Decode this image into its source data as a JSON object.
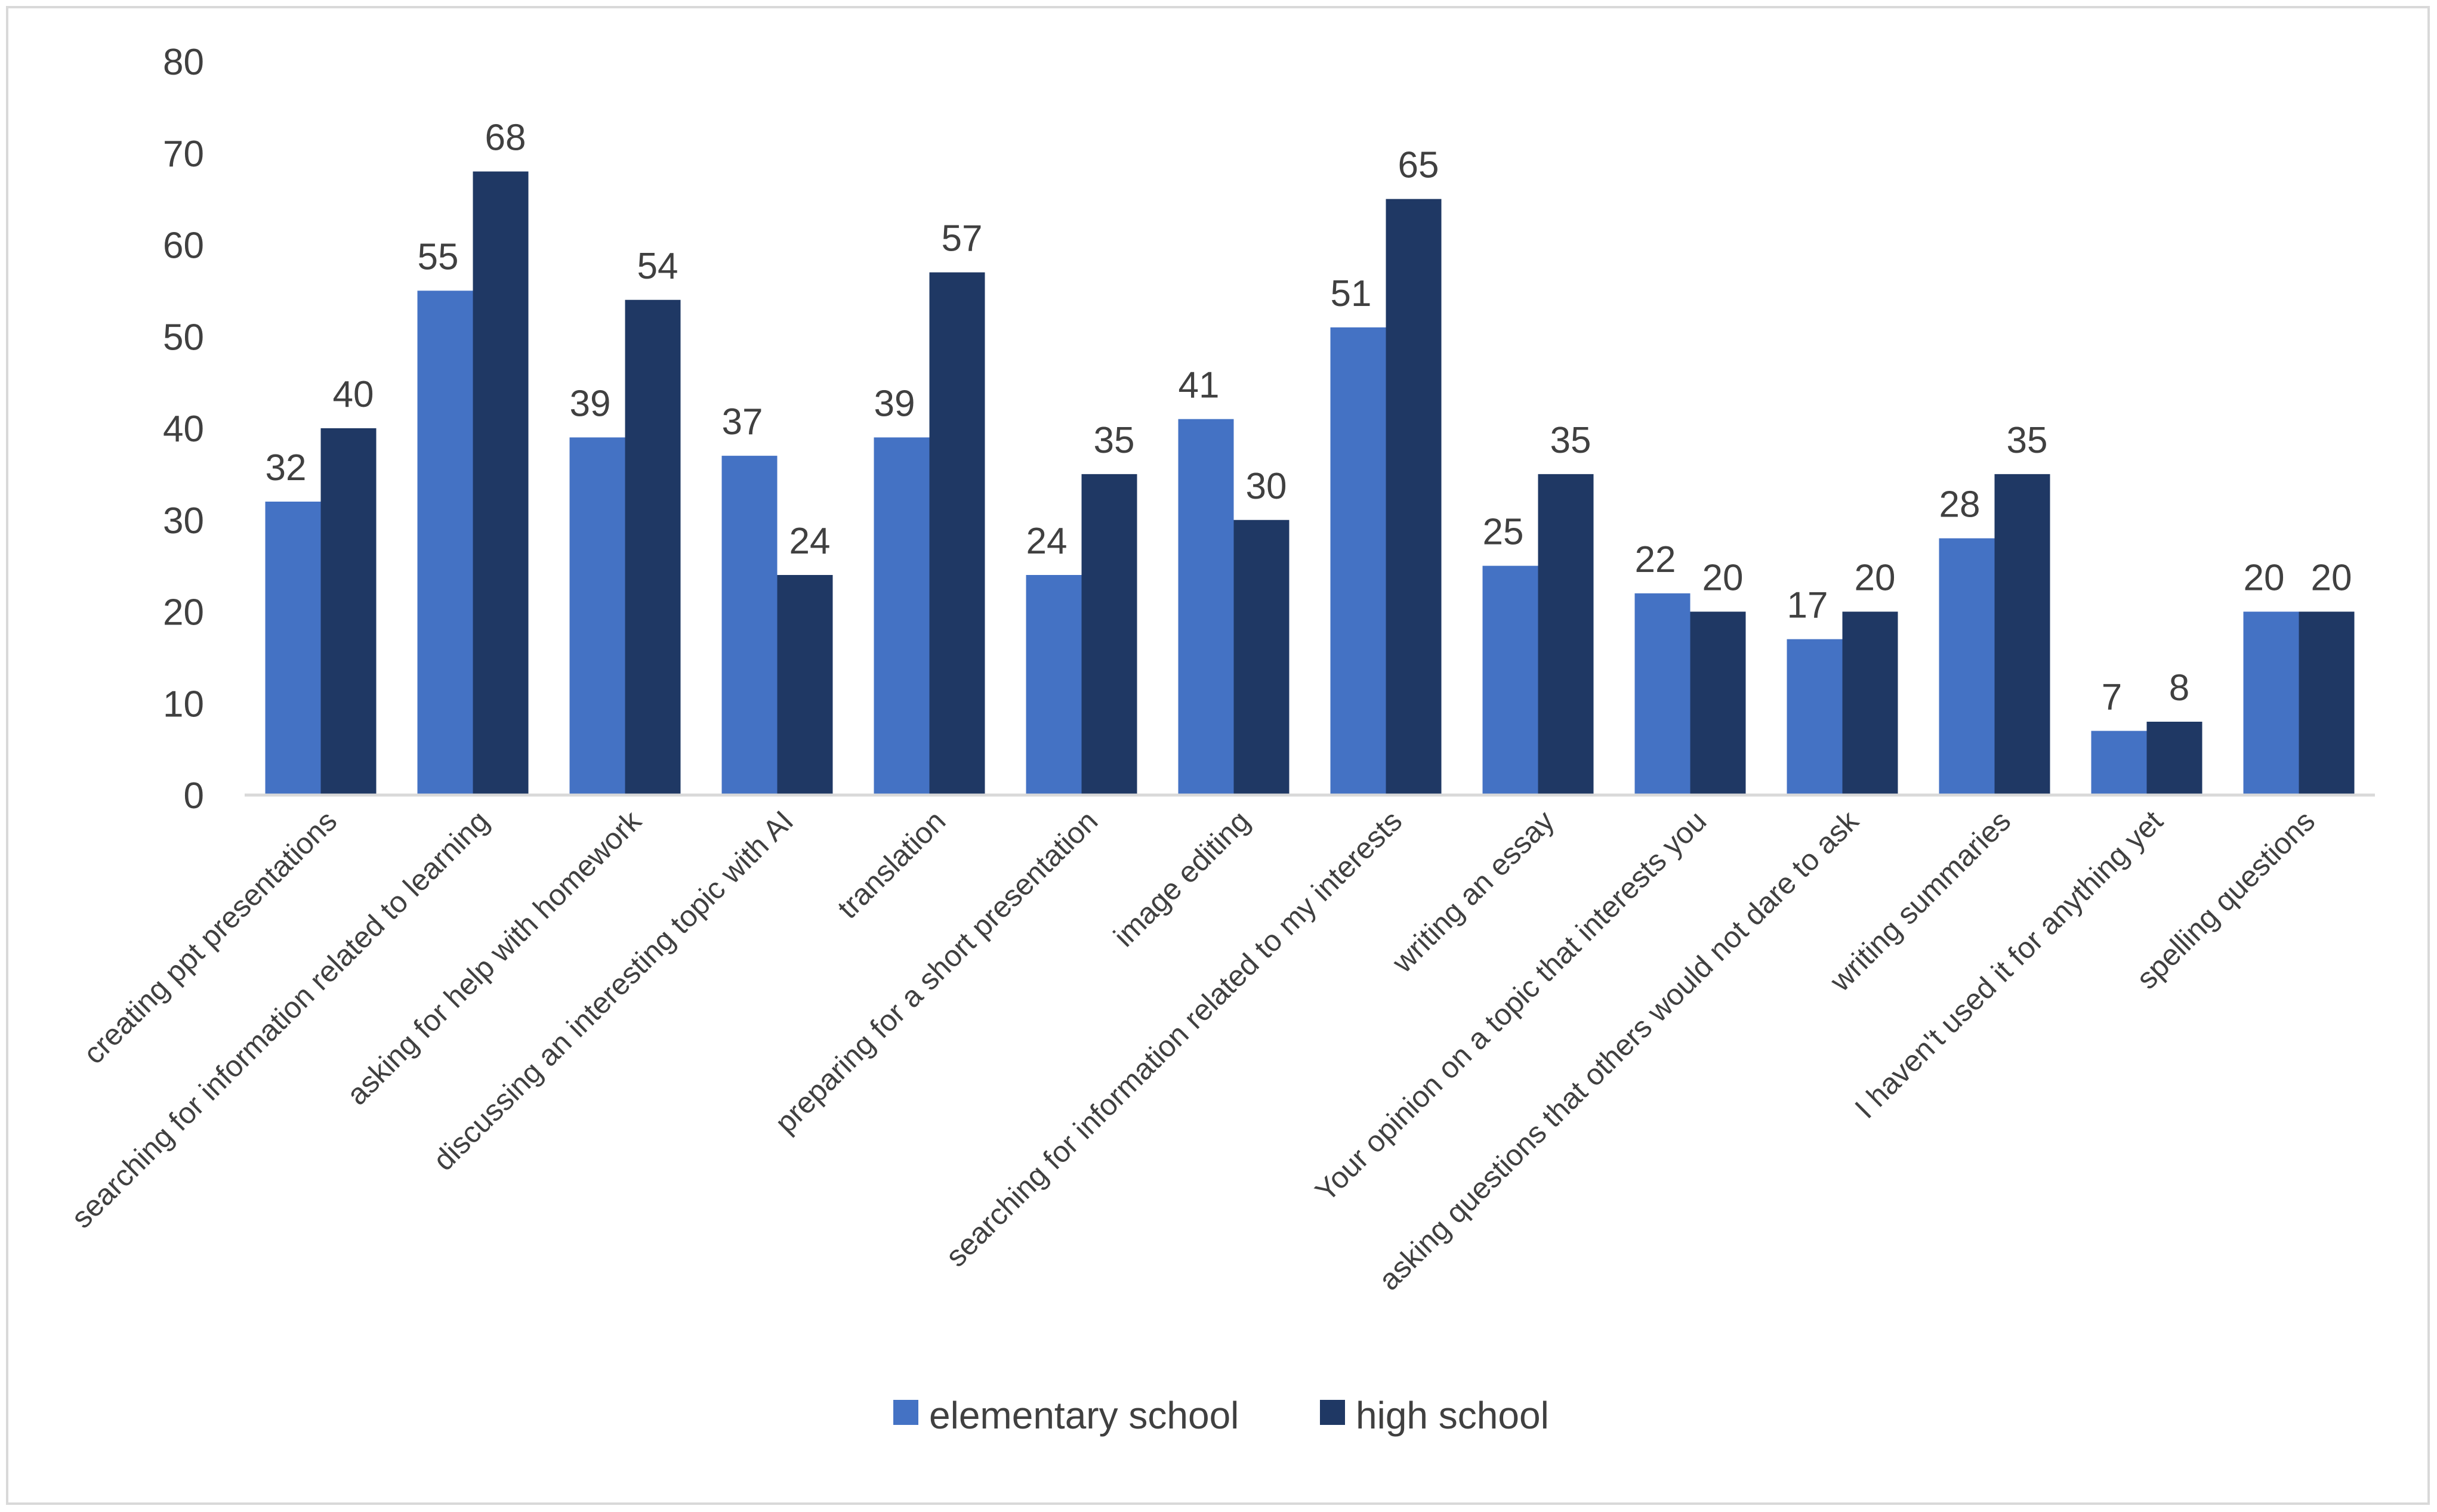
{
  "chart_data": {
    "type": "bar",
    "title": "",
    "xlabel": "",
    "ylabel": "",
    "ylim": [
      0,
      80
    ],
    "yticks": [
      0,
      10,
      20,
      30,
      40,
      50,
      60,
      70,
      80
    ],
    "grid": false,
    "legend_position": "bottom",
    "categories": [
      "creating ppt presentations",
      "searching for information related to learning",
      "asking for help with homework",
      "discussing an interesting topic with AI",
      "translation",
      "preparing for a short presentation",
      "image editing",
      "searching for information related to my interests",
      "writing an essay",
      "Your opinion on a topic that interests you",
      "asking questions that others would not dare to ask",
      "writing summaries",
      "I haven't used it for anything yet",
      "spelling questions"
    ],
    "series": [
      {
        "name": "elementary school",
        "color": "#4472C4",
        "values": [
          32,
          55,
          39,
          37,
          39,
          24,
          41,
          51,
          25,
          22,
          17,
          28,
          7,
          20
        ]
      },
      {
        "name": "high school",
        "color": "#1F3864",
        "values": [
          40,
          68,
          54,
          24,
          57,
          35,
          30,
          65,
          35,
          20,
          20,
          35,
          8,
          20
        ]
      }
    ]
  }
}
